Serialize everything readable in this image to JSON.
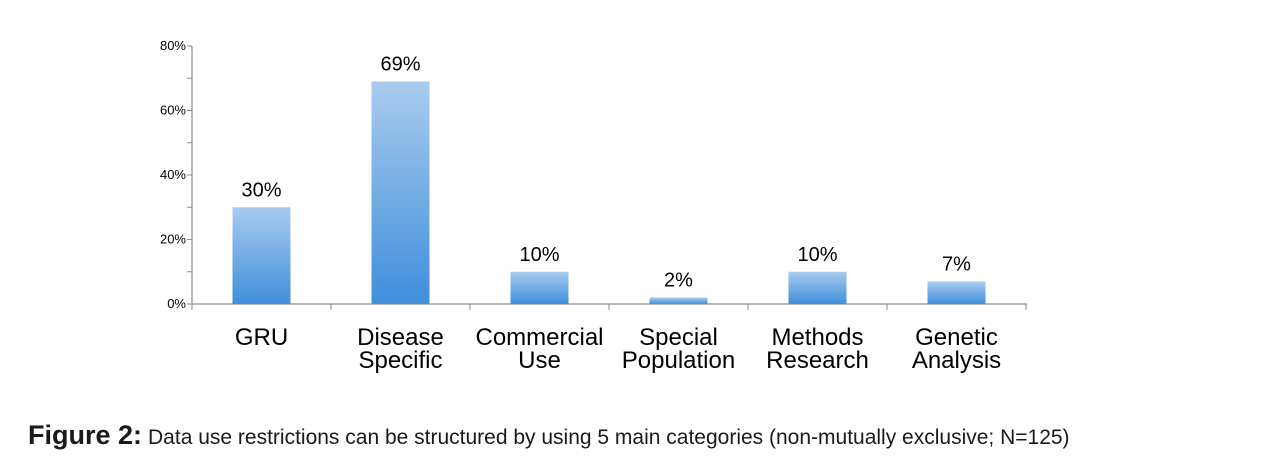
{
  "chart_data": {
    "type": "bar",
    "categories": [
      [
        "GRU"
      ],
      [
        "Disease",
        "Specific"
      ],
      [
        "Commercial",
        "Use"
      ],
      [
        "Special",
        "Population"
      ],
      [
        "Methods",
        "Research"
      ],
      [
        "Genetic",
        "Analysis"
      ]
    ],
    "values": [
      30,
      69,
      10,
      2,
      10,
      7
    ],
    "value_labels": [
      "30%",
      "69%",
      "10%",
      "2%",
      "10%",
      "7%"
    ],
    "y_ticks": [
      0,
      20,
      40,
      60,
      80
    ],
    "y_tick_labels": [
      "0%",
      "20%",
      "40%",
      "60%",
      "80%"
    ],
    "ylim": [
      0,
      80
    ],
    "grid": false,
    "legend": "none",
    "bar_color_top": "#a9cbef",
    "bar_color_bottom": "#3f8fdb"
  },
  "caption": {
    "label": "Figure 2:",
    "text": "Data use restrictions can be structured by using  5 main categories  (non-mutually exclusive; N=125)"
  }
}
